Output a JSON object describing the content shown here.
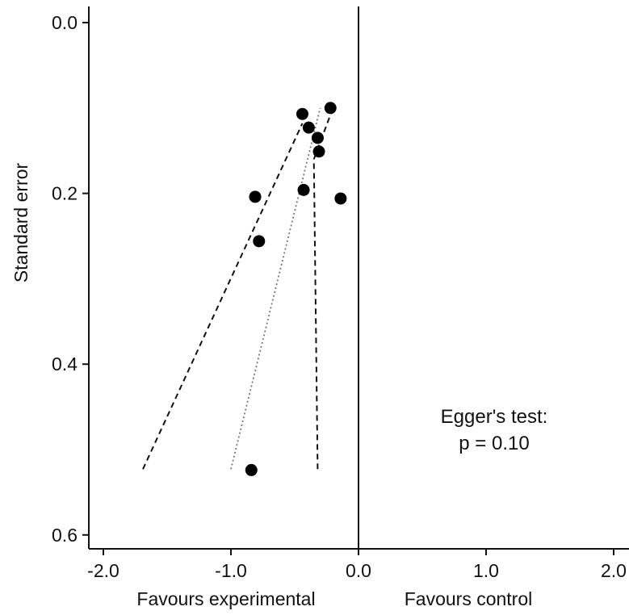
{
  "chart_data": {
    "type": "scatter",
    "title": "",
    "ylabel": "Standard error",
    "x_labels": {
      "left": "Favours experimental",
      "right": "Favours control"
    },
    "xlim": [
      -2.0,
      2.0
    ],
    "ylim": [
      0.0,
      0.6
    ],
    "y_inverted": true,
    "x_ticks": [
      "-2.0",
      "-1.0",
      "0.0",
      "1.0",
      "2.0"
    ],
    "y_ticks": [
      "0.0",
      "0.2",
      "0.4",
      "0.6"
    ],
    "grid": false,
    "legend": null,
    "reference_line_x": 0.0,
    "points": [
      {
        "x": -0.22,
        "y": 0.1
      },
      {
        "x": -0.44,
        "y": 0.107
      },
      {
        "x": -0.39,
        "y": 0.123
      },
      {
        "x": -0.32,
        "y": 0.135
      },
      {
        "x": -0.31,
        "y": 0.151
      },
      {
        "x": -0.81,
        "y": 0.204
      },
      {
        "x": -0.43,
        "y": 0.196
      },
      {
        "x": -0.14,
        "y": 0.206
      },
      {
        "x": -0.78,
        "y": 0.256
      },
      {
        "x": -0.84,
        "y": 0.524
      }
    ],
    "lines": [
      {
        "style": "dashed",
        "points": [
          [
            -1.69,
            0.523
          ],
          [
            -0.44,
            0.118
          ]
        ]
      },
      {
        "style": "dashed",
        "points": [
          [
            -0.32,
            0.523
          ],
          [
            -0.35,
            0.16
          ],
          [
            -0.21,
            0.104
          ]
        ]
      },
      {
        "style": "dotted",
        "points": [
          [
            -1.0,
            0.523
          ],
          [
            -0.3,
            0.1
          ]
        ]
      }
    ],
    "annotation": [
      "Egger's test:",
      "p = 0.10"
    ]
  }
}
